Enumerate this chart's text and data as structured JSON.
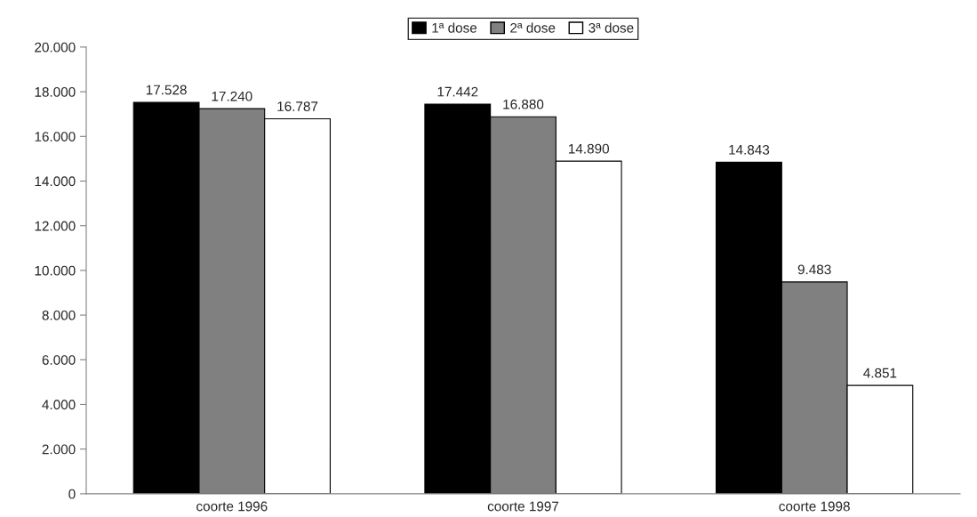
{
  "chart_data": {
    "type": "bar",
    "categories": [
      "coorte 1996",
      "coorte 1997",
      "coorte 1998"
    ],
    "series": [
      {
        "name": "1ª dose",
        "color": "#000000",
        "values": [
          17528,
          17442,
          14843
        ],
        "value_labels": [
          "17.528",
          "17.442",
          "14.843"
        ]
      },
      {
        "name": "2ª dose",
        "color": "#808080",
        "values": [
          17240,
          16880,
          9483
        ],
        "value_labels": [
          "17.240",
          "16.880",
          "9.483"
        ]
      },
      {
        "name": "3ª dose",
        "color": "#ffffff",
        "values": [
          16787,
          14890,
          4851
        ],
        "value_labels": [
          "16.787",
          "14.890",
          "4.851"
        ]
      }
    ],
    "ylim": [
      0,
      20000
    ],
    "yticks": [
      {
        "value": 0,
        "label": "0"
      },
      {
        "value": 2000,
        "label": "2.000"
      },
      {
        "value": 4000,
        "label": "4.000"
      },
      {
        "value": 6000,
        "label": "6.000"
      },
      {
        "value": 8000,
        "label": "8.000"
      },
      {
        "value": 10000,
        "label": "10.000"
      },
      {
        "value": 12000,
        "label": "12.000"
      },
      {
        "value": 14000,
        "label": "14.000"
      },
      {
        "value": 16000,
        "label": "16.000"
      },
      {
        "value": 18000,
        "label": "18.000"
      },
      {
        "value": 20000,
        "label": "20.000"
      }
    ],
    "grid": false,
    "legend": "top"
  }
}
